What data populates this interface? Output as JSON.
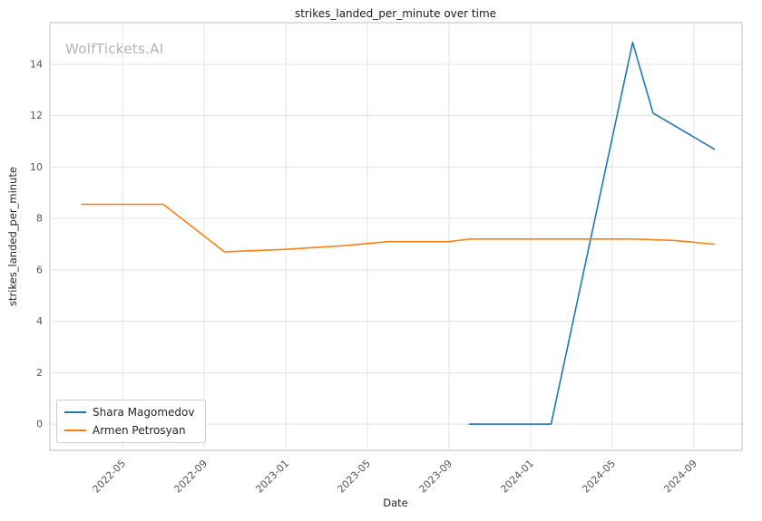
{
  "watermark": "WolfTickets.AI",
  "chart_data": {
    "type": "line",
    "title": "strikes_landed_per_minute over time",
    "xlabel": "Date",
    "ylabel": "strikes_landed_per_minute",
    "grid": true,
    "legend_position": "lower left",
    "x_tick_labels": [
      "2022-05",
      "2022-09",
      "2023-01",
      "2023-05",
      "2023-09",
      "2024-01",
      "2024-05",
      "2024-09"
    ],
    "y_ticks": [
      0,
      2,
      4,
      6,
      8,
      10,
      12,
      14
    ],
    "ylim": [
      -1.02,
      15.62
    ],
    "xlim_months_from_2022_01": [
      0.44,
      34.36
    ],
    "colors": {
      "grid": "#e3e3e3",
      "plot_border": "#cccccc",
      "tick_text": "#555555"
    },
    "series": [
      {
        "name": "Shara Magomedov",
        "color": "#1f77b4",
        "points": [
          {
            "date": "2023-10",
            "value": 0.0
          },
          {
            "date": "2024-01",
            "value": 0.0
          },
          {
            "date": "2024-02",
            "value": 0.0
          },
          {
            "date": "2024-06",
            "value": 14.85
          },
          {
            "date": "2024-07",
            "value": 12.1
          },
          {
            "date": "2024-10",
            "value": 10.7
          }
        ]
      },
      {
        "name": "Armen Petrosyan",
        "color": "#ff7f0e",
        "points": [
          {
            "date": "2022-03",
            "value": 8.55
          },
          {
            "date": "2022-07",
            "value": 8.55
          },
          {
            "date": "2022-10",
            "value": 6.7
          },
          {
            "date": "2023-01",
            "value": 6.8
          },
          {
            "date": "2023-04",
            "value": 6.95
          },
          {
            "date": "2023-06",
            "value": 7.1
          },
          {
            "date": "2023-09",
            "value": 7.1
          },
          {
            "date": "2023-10",
            "value": 7.2
          },
          {
            "date": "2024-06",
            "value": 7.2
          },
          {
            "date": "2024-08",
            "value": 7.15
          },
          {
            "date": "2024-10",
            "value": 7.0
          }
        ]
      }
    ]
  }
}
